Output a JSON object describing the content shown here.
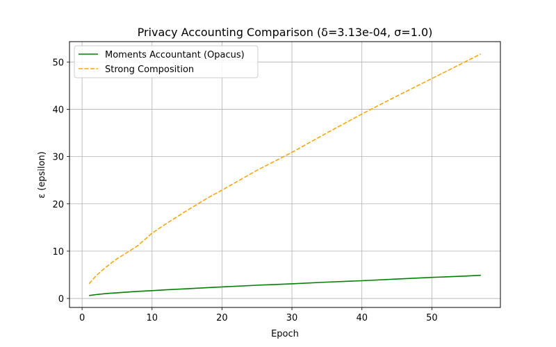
{
  "chart_data": {
    "type": "line",
    "title": "Privacy Accounting Comparison (δ=3.13e-04, σ=1.0)",
    "xlabel": "Epoch",
    "ylabel": "ε (epsilon)",
    "xlim": [
      -1.8,
      59.8
    ],
    "ylim": [
      -1.9,
      54.3
    ],
    "xticks": [
      0,
      10,
      20,
      30,
      40,
      50
    ],
    "yticks": [
      0,
      10,
      20,
      30,
      40,
      50
    ],
    "grid": true,
    "legend_position": "top-left",
    "x": [
      1,
      2,
      3,
      4,
      5,
      6,
      8,
      10,
      12,
      15,
      18,
      20,
      25,
      30,
      35,
      40,
      45,
      50,
      55,
      57
    ],
    "series": [
      {
        "name": "Moments Accountant (Opacus)",
        "color": "#008000",
        "dash": "solid",
        "values": [
          0.62,
          0.82,
          0.98,
          1.1,
          1.2,
          1.3,
          1.5,
          1.65,
          1.82,
          2.05,
          2.3,
          2.45,
          2.8,
          3.1,
          3.45,
          3.75,
          4.1,
          4.45,
          4.75,
          4.9
        ]
      },
      {
        "name": "Strong Composition",
        "color": "#ffa500",
        "dash": "dashed",
        "values": [
          3.1,
          4.8,
          6.1,
          7.3,
          8.4,
          9.3,
          11.2,
          13.8,
          15.8,
          18.6,
          21.3,
          22.9,
          27.1,
          30.9,
          35.0,
          39.0,
          42.8,
          46.5,
          50.2,
          51.7
        ]
      }
    ]
  }
}
